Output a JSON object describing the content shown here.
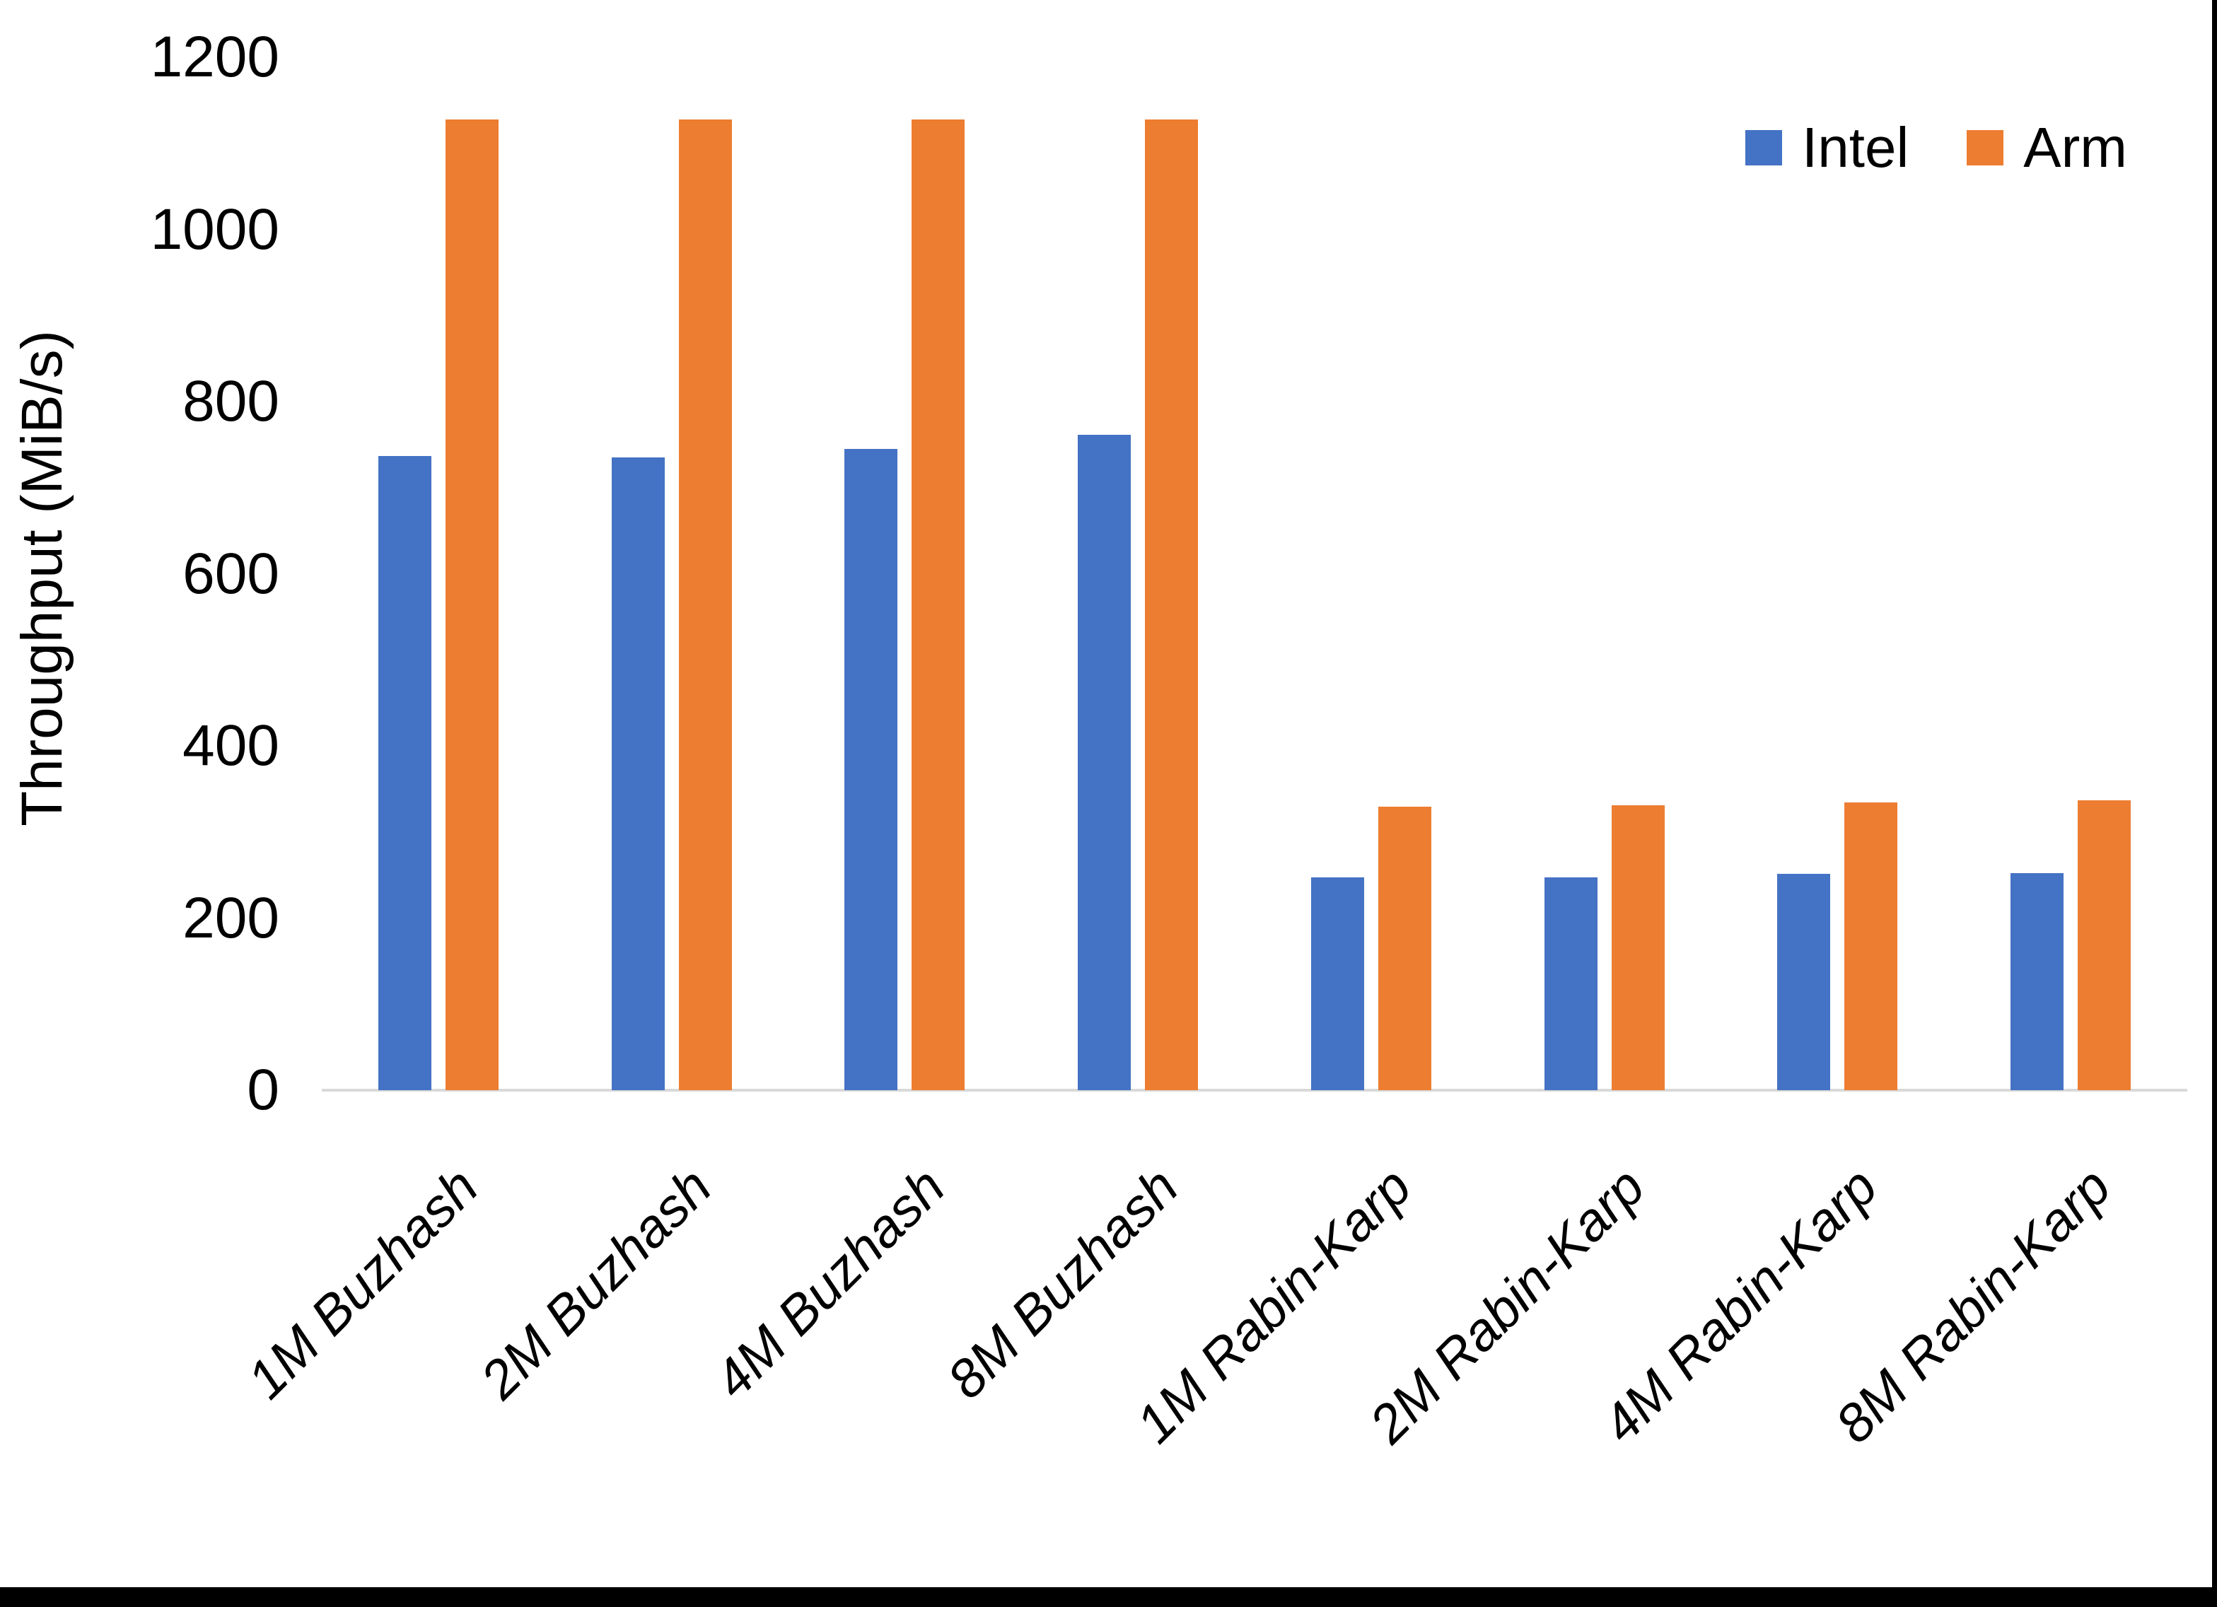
{
  "chart_data": {
    "type": "bar",
    "title": "",
    "categories": [
      "1M Buzhash",
      "2M Buzhash",
      "4M Buzhash",
      "8M Buzhash",
      "1M Rabin-Karp",
      "2M Rabin-Karp",
      "4M Rabin-Karp",
      "8M Rabin-Karp"
    ],
    "series": [
      {
        "name": "Intel",
        "color": "#4472C4",
        "values": [
          737,
          735,
          745,
          761,
          247,
          247,
          251,
          252
        ]
      },
      {
        "name": "Arm",
        "color": "#ED7D31",
        "values": [
          1128,
          1128,
          1128,
          1128,
          329,
          331,
          334,
          337
        ]
      }
    ],
    "xlabel": "",
    "ylabel": "Throughput (MiB/s)",
    "ylim": [
      0,
      1200
    ],
    "yticks": [
      0,
      200,
      400,
      600,
      800,
      1000,
      1200
    ],
    "grid": false,
    "legend_position": "top-right"
  },
  "colors": {
    "intel": "#4472C4",
    "arm": "#ED7D31",
    "axis_line": "#D9D9D9",
    "text": "#000000",
    "frame": "#000000",
    "background": "#FFFFFF"
  }
}
